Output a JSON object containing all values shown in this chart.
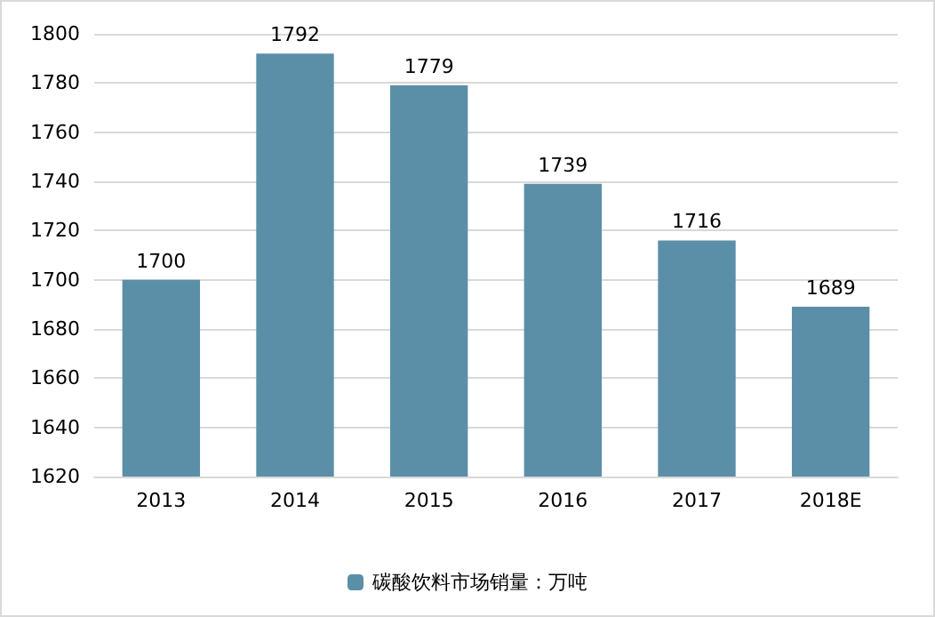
{
  "chart_data": {
    "type": "bar",
    "categories": [
      "2013",
      "2014",
      "2015",
      "2016",
      "2017",
      "2018E"
    ],
    "series": [
      {
        "name": "碳酸饮料市场销量：万吨",
        "color": "#5b8fa8",
        "values": [
          1700,
          1792,
          1779,
          1739,
          1716,
          1689
        ]
      }
    ],
    "ylim": [
      1620,
      1800
    ],
    "yticks": [
      1620,
      1640,
      1660,
      1680,
      1700,
      1720,
      1740,
      1760,
      1780,
      1800
    ],
    "grid": "y",
    "legend": "bottom",
    "data_labels": true
  }
}
